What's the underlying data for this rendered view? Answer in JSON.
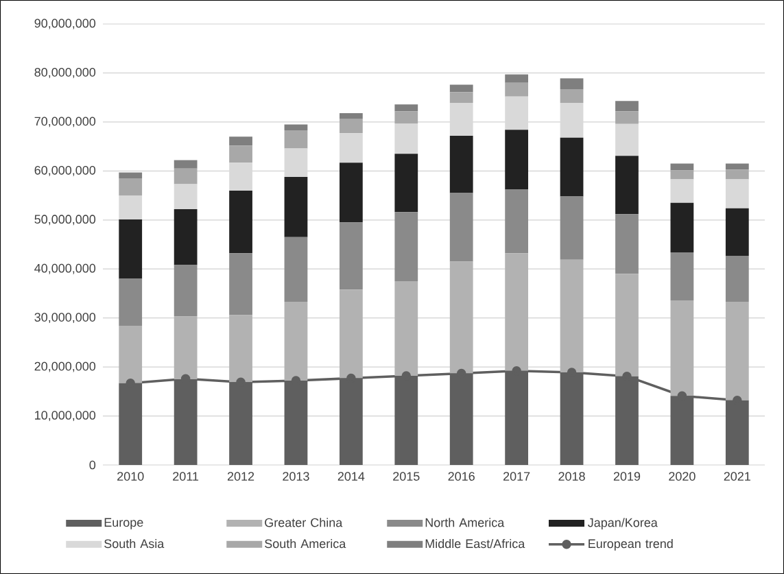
{
  "chart_data": {
    "type": "bar",
    "stacked": true,
    "grid": "y",
    "legend": "bottom",
    "categories": [
      "2010",
      "2011",
      "2012",
      "2013",
      "2014",
      "2015",
      "2016",
      "2017",
      "2018",
      "2019",
      "2020",
      "2021"
    ],
    "ylim": [
      0,
      90000000
    ],
    "yticks": [
      0,
      {
        "value": 10000000,
        "label": "10,000,000"
      },
      {
        "value": 20000000,
        "label": "20,000,000"
      },
      {
        "value": 30000000,
        "label": "30,000,000"
      },
      {
        "value": 40000000,
        "label": "40,000,000"
      },
      {
        "value": 50000000,
        "label": "50,000,000"
      },
      {
        "value": 60000000,
        "label": "60,000,000"
      },
      {
        "value": 70000000,
        "label": "70,000,000"
      },
      {
        "value": 80000000,
        "label": "80,000,000"
      },
      {
        "value": 90000000,
        "label": "90,000,000"
      }
    ],
    "series": [
      {
        "name": "Europe",
        "color": "#5f5f5f",
        "values": [
          16700000,
          17500000,
          16900000,
          17200000,
          17700000,
          18200000,
          18700000,
          19200000,
          18900000,
          18100000,
          14100000,
          13200000
        ]
      },
      {
        "name": "Greater China",
        "color": "#b2b2b2",
        "values": [
          11700000,
          12800000,
          13700000,
          16100000,
          18100000,
          19300000,
          22800000,
          24000000,
          23000000,
          20900000,
          19500000,
          20100000
        ]
      },
      {
        "name": "North America",
        "color": "#8a8a8a",
        "values": [
          9600000,
          10500000,
          12600000,
          13200000,
          13700000,
          14100000,
          14000000,
          13000000,
          12900000,
          12200000,
          9800000,
          9400000
        ]
      },
      {
        "name": "Japan/Korea",
        "color": "#222222",
        "values": [
          12100000,
          11400000,
          12800000,
          12300000,
          12200000,
          11900000,
          11700000,
          12200000,
          12000000,
          11900000,
          10100000,
          9700000
        ]
      },
      {
        "name": "South Asia",
        "color": "#d9d9d9",
        "values": [
          4900000,
          5100000,
          5700000,
          5800000,
          6000000,
          6200000,
          6700000,
          6800000,
          7100000,
          6500000,
          4800000,
          5900000
        ]
      },
      {
        "name": "South America",
        "color": "#a8a8a8",
        "values": [
          3500000,
          3200000,
          3500000,
          3700000,
          3000000,
          2500000,
          2200000,
          2800000,
          2800000,
          2600000,
          1800000,
          2000000
        ]
      },
      {
        "name": "Middle East/Africa",
        "color": "#7f7f7f",
        "values": [
          1200000,
          1700000,
          1800000,
          1200000,
          1100000,
          1400000,
          1500000,
          1700000,
          2200000,
          2100000,
          1400000,
          1200000
        ]
      },
      {
        "name": "European trend",
        "type": "line",
        "color": "#5f5f5f",
        "marker": "circle",
        "line_style": "solid",
        "values": [
          16700000,
          17600000,
          16900000,
          17200000,
          17700000,
          18200000,
          18700000,
          19200000,
          18900000,
          18100000,
          14100000,
          13200000
        ]
      }
    ]
  }
}
